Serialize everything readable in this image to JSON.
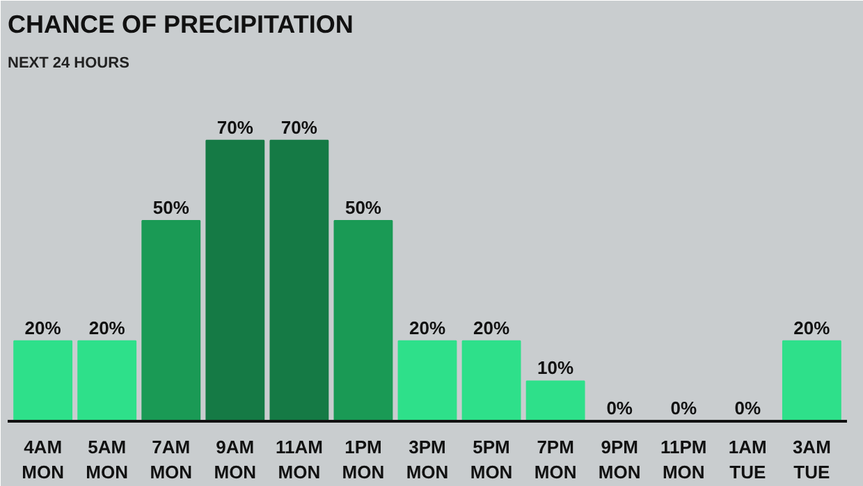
{
  "chart_data": {
    "type": "bar",
    "title": "CHANCE OF PRECIPITATION",
    "subtitle": "NEXT 24 HOURS",
    "categories": [
      "4AM\nMON",
      "5AM\nMON",
      "7AM\nMON",
      "9AM\nMON",
      "11AM\nMON",
      "1PM\nMON",
      "3PM\nMON",
      "5PM\nMON",
      "7PM\nMON",
      "9PM\nMON",
      "11PM\nMON",
      "1AM\nTUE",
      "3AM\nTUE"
    ],
    "values": [
      20,
      20,
      50,
      70,
      70,
      50,
      20,
      20,
      10,
      0,
      0,
      0,
      20
    ],
    "colors": [
      "#2ee08a",
      "#2ee08a",
      "#1a9a55",
      "#157a45",
      "#157a45",
      "#1a9a55",
      "#2ee08a",
      "#2ee08a",
      "#2ee08a",
      "#2ee08a",
      "#2ee08a",
      "#2ee08a",
      "#2ee08a"
    ],
    "value_labels": [
      "20%",
      "20%",
      "50%",
      "70%",
      "70%",
      "50%",
      "20%",
      "20%",
      "10%",
      "0%",
      "0%",
      "0%",
      "20%"
    ],
    "grid": false
  }
}
